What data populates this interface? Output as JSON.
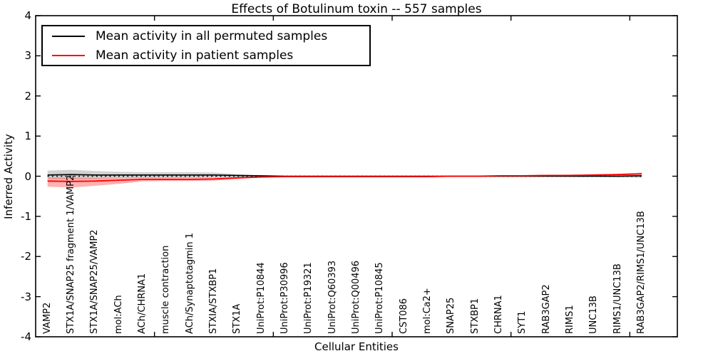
{
  "chart_data": {
    "type": "line",
    "title": "Effects of Botulinum toxin -- 557 samples",
    "xlabel": "Cellular Entities",
    "ylabel": "Inferred Activity",
    "ylim": [
      -4,
      4
    ],
    "y_tick_values": [
      4,
      3,
      2,
      1,
      0,
      -1,
      -2,
      -3,
      -4
    ],
    "y_tick_labels": [
      "4",
      "3",
      "2",
      "1",
      "0",
      "-1",
      "-2",
      "-3",
      "-4"
    ],
    "x_axis_range": [
      0,
      27
    ],
    "x_major_tick_units": [
      5,
      10,
      15,
      20,
      25
    ],
    "grid": false,
    "legend_position": "upper left",
    "categories": [
      "VAMP2",
      "STX1A/SNAP25 fragment 1/VAMP2",
      "STX1A/SNAP25/VAMP2",
      "mol:ACh",
      "ACh/CHRNA1",
      "muscle contraction",
      "ACh/Synaptotagmin 1",
      "STXIA/STXBP1",
      "STX1A",
      "UniProt:P10844",
      "UniProt:P30996",
      "UniProt:P19321",
      "UniProt:Q60393",
      "UniProt:Q00496",
      "UniProt:P10845",
      "CST086",
      "mol:Ca2+",
      "SNAP25",
      "STXBP1",
      "CHRNA1",
      "SYT1",
      "RAB3GAP2",
      "RIMS1",
      "UNC13B",
      "RIMS1/UNC13B",
      "RAB3GAP2/RIMS1/UNC13B"
    ],
    "series": [
      {
        "name": "Mean activity in all permuted samples",
        "color": "#000000",
        "values": [
          0.03,
          0.04,
          0.03,
          0.03,
          0.03,
          0.03,
          0.03,
          0.03,
          0.02,
          0.01,
          0.0,
          0.0,
          0.0,
          0.0,
          0.0,
          0.0,
          0.0,
          0.0,
          0.0,
          0.0,
          0.0,
          0.0,
          0.0,
          0.0,
          0.0,
          0.01
        ]
      },
      {
        "name": "Mean activity in patient samples",
        "color": "#ff0000",
        "values": [
          -0.12,
          -0.13,
          -0.12,
          -0.1,
          -0.08,
          -0.08,
          -0.08,
          -0.07,
          -0.04,
          -0.02,
          -0.01,
          -0.01,
          -0.01,
          -0.01,
          -0.01,
          -0.01,
          -0.01,
          0.0,
          0.0,
          0.01,
          0.01,
          0.02,
          0.02,
          0.03,
          0.04,
          0.06
        ]
      }
    ],
    "bands": [
      {
        "name": "permuted-samples-band",
        "fill": "#9a9a9a",
        "opacity": 0.45,
        "upper": [
          0.14,
          0.16,
          0.13,
          0.11,
          0.1,
          0.1,
          0.1,
          0.09,
          0.05,
          0.02,
          0.01,
          0.01,
          0.01,
          0.01,
          0.01,
          0.01,
          0.01,
          0.01,
          0.01,
          0.01,
          0.01,
          0.01,
          0.02,
          0.02,
          0.03,
          0.04
        ],
        "lower": [
          -0.06,
          -0.07,
          -0.06,
          -0.05,
          -0.04,
          -0.04,
          -0.04,
          -0.03,
          -0.02,
          -0.01,
          -0.01,
          -0.01,
          -0.01,
          -0.01,
          -0.01,
          -0.01,
          -0.01,
          -0.01,
          -0.01,
          -0.01,
          -0.01,
          -0.01,
          -0.02,
          -0.02,
          -0.03,
          -0.04
        ]
      },
      {
        "name": "patient-samples-band",
        "fill": "#ff0000",
        "opacity": 0.3,
        "upper": [
          -0.03,
          -0.04,
          -0.04,
          -0.04,
          -0.03,
          -0.03,
          -0.03,
          -0.03,
          -0.02,
          -0.01,
          0.0,
          0.0,
          0.0,
          0.0,
          0.0,
          0.0,
          0.0,
          0.01,
          0.01,
          0.02,
          0.02,
          0.03,
          0.04,
          0.05,
          0.06,
          0.09
        ],
        "lower": [
          -0.26,
          -0.28,
          -0.24,
          -0.19,
          -0.13,
          -0.12,
          -0.12,
          -0.11,
          -0.07,
          -0.03,
          -0.02,
          -0.02,
          -0.02,
          -0.02,
          -0.02,
          -0.02,
          -0.02,
          -0.01,
          -0.01,
          0.0,
          0.0,
          0.01,
          0.01,
          0.02,
          0.02,
          0.04
        ]
      }
    ],
    "reference_line": {
      "y": 0,
      "style": "dotted",
      "color": "#000000"
    }
  },
  "legend": {
    "entries": [
      {
        "label": "Mean activity in all permuted samples",
        "color": "#000000"
      },
      {
        "label": "Mean activity in patient samples",
        "color": "#ff0000"
      }
    ]
  }
}
